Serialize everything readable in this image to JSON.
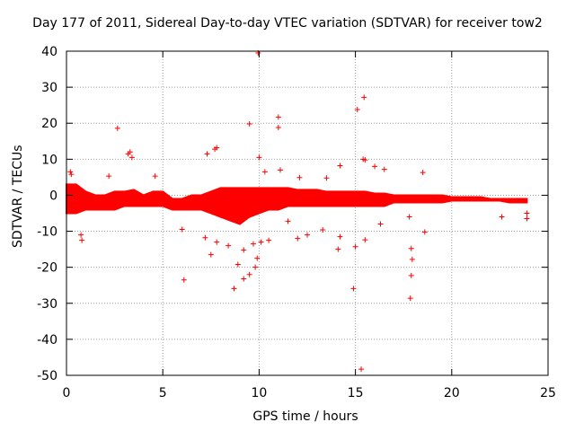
{
  "chart_data": {
    "type": "scatter",
    "title": "Day 177 of 2011, Sidereal Day-to-day VTEC variation (SDTVAR) for receiver tow2",
    "xlabel": "GPS time / hours",
    "ylabel": "SDTVAR / TECUs",
    "xlim": [
      0,
      25
    ],
    "ylim": [
      -50,
      40
    ],
    "xticks": [
      "0",
      "5",
      "10",
      "15",
      "20",
      "25"
    ],
    "yticks": [
      "40",
      "30",
      "20",
      "10",
      "0",
      "-10",
      "-20",
      "-30",
      "-40",
      "-50"
    ],
    "grid": true,
    "marker": "+",
    "series_color": "#ff0000",
    "band": {
      "name": "SDTVAR main band",
      "x": [
        0,
        0.5,
        1,
        1.5,
        2,
        2.5,
        3,
        3.5,
        4,
        4.5,
        5,
        5.5,
        6,
        6.5,
        7,
        7.5,
        8,
        8.5,
        9,
        9.5,
        10,
        10.5,
        11,
        11.5,
        12,
        12.5,
        13,
        13.5,
        14,
        14.5,
        15,
        15.5,
        16,
        16.5,
        17,
        17.5,
        18,
        18.5,
        19,
        19.5,
        20,
        20.5,
        21,
        21.5,
        22,
        22.5,
        23,
        23.5,
        23.9
      ],
      "upper": [
        3,
        3,
        1,
        0,
        0,
        1,
        1,
        1.5,
        0,
        1,
        1,
        -1,
        -1,
        0,
        0,
        1,
        2,
        2,
        2,
        2,
        2,
        2,
        2,
        2,
        1.5,
        1.5,
        1.5,
        1,
        1,
        1,
        1,
        1,
        0.5,
        0.5,
        0,
        0,
        0,
        0,
        0,
        0,
        -0.5,
        -0.5,
        -0.5,
        -0.5,
        -1,
        -1,
        -1,
        -1,
        -1
      ],
      "lower": [
        -5,
        -5,
        -4,
        -4,
        -4,
        -4,
        -3,
        -3,
        -3,
        -3,
        -3,
        -4,
        -4,
        -4,
        -4,
        -5,
        -6,
        -7,
        -8,
        -6,
        -5,
        -4,
        -4,
        -3,
        -3,
        -3,
        -3,
        -3,
        -3,
        -3,
        -3,
        -3,
        -3,
        -3,
        -2,
        -2,
        -2,
        -2,
        -2,
        -2,
        -1.5,
        -1.5,
        -1.5,
        -1.5,
        -1.5,
        -1.5,
        -2,
        -2,
        -2
      ]
    },
    "points": [
      [
        9.95,
        39.5
      ],
      [
        15.45,
        27.2
      ],
      [
        15.1,
        23.8
      ],
      [
        11.0,
        21.7
      ],
      [
        11.0,
        18.8
      ],
      [
        9.5,
        19.8
      ],
      [
        2.65,
        18.6
      ],
      [
        7.7,
        12.8
      ],
      [
        7.8,
        13.2
      ],
      [
        7.3,
        11.5
      ],
      [
        10.0,
        10.5
      ],
      [
        3.2,
        11.5
      ],
      [
        3.3,
        12.0
      ],
      [
        3.4,
        10.5
      ],
      [
        15.4,
        10.0
      ],
      [
        15.5,
        9.8
      ],
      [
        14.2,
        8.2
      ],
      [
        16.0,
        8.0
      ],
      [
        16.5,
        7.2
      ],
      [
        11.1,
        7.0
      ],
      [
        10.3,
        6.5
      ],
      [
        2.2,
        5.3
      ],
      [
        0.2,
        6.5
      ],
      [
        0.25,
        5.8
      ],
      [
        4.6,
        5.3
      ],
      [
        18.5,
        6.3
      ],
      [
        12.1,
        4.9
      ],
      [
        13.5,
        4.8
      ],
      [
        6.0,
        -9.5
      ],
      [
        7.2,
        -11.8
      ],
      [
        7.5,
        -16.5
      ],
      [
        6.1,
        -23.5
      ],
      [
        8.7,
        -25.9
      ],
      [
        9.5,
        -22.0
      ],
      [
        9.2,
        -23.2
      ],
      [
        9.8,
        -20.0
      ],
      [
        9.9,
        -17.5
      ],
      [
        8.9,
        -19.2
      ],
      [
        8.4,
        -14.0
      ],
      [
        7.8,
        -13.0
      ],
      [
        9.2,
        -15.2
      ],
      [
        9.7,
        -13.5
      ],
      [
        10.1,
        -13.0
      ],
      [
        10.5,
        -12.5
      ],
      [
        0.8,
        -12.5
      ],
      [
        0.75,
        -11.0
      ],
      [
        12.0,
        -12.0
      ],
      [
        12.5,
        -11.0
      ],
      [
        14.1,
        -15.0
      ],
      [
        13.3,
        -9.6
      ],
      [
        14.2,
        -11.5
      ],
      [
        14.9,
        -25.9
      ],
      [
        15.0,
        -14.3
      ],
      [
        15.3,
        -48.3
      ],
      [
        15.5,
        -12.4
      ],
      [
        17.9,
        -14.8
      ],
      [
        17.95,
        -17.8
      ],
      [
        17.9,
        -22.3
      ],
      [
        17.85,
        -28.6
      ],
      [
        18.6,
        -10.2
      ],
      [
        17.8,
        -6.0
      ],
      [
        22.6,
        -6.0
      ],
      [
        23.9,
        -6.5
      ],
      [
        23.9,
        -5.0
      ],
      [
        16.3,
        -8.0
      ],
      [
        11.5,
        -7.2
      ]
    ]
  }
}
